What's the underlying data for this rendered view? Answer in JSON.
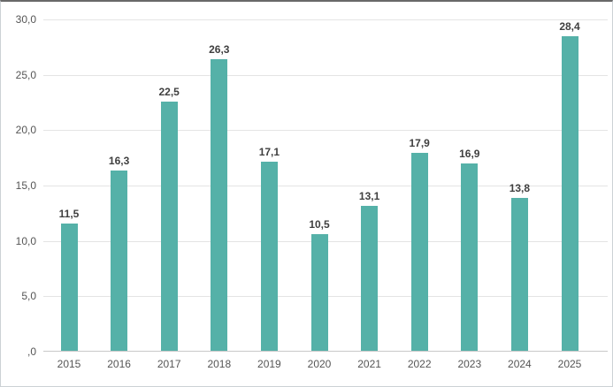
{
  "chart_data": {
    "type": "bar",
    "title": "",
    "xlabel": "",
    "ylabel": "",
    "categories": [
      "2015",
      "2016",
      "2017",
      "2018",
      "2019",
      "2020",
      "2021",
      "2022",
      "2023",
      "2024",
      "2025"
    ],
    "values": [
      11.5,
      16.3,
      22.5,
      26.3,
      17.1,
      10.5,
      13.1,
      17.9,
      16.9,
      13.8,
      28.4
    ],
    "value_labels": [
      "11,5",
      "16,3",
      "22,5",
      "26,3",
      "17,1",
      "10,5",
      "13,1",
      "17,9",
      "16,9",
      "13,8",
      "28,4"
    ],
    "ylim": [
      0,
      30
    ],
    "y_ticks": [
      {
        "value": 0,
        "label": ",0"
      },
      {
        "value": 5,
        "label": "5,0"
      },
      {
        "value": 10,
        "label": "10,0"
      },
      {
        "value": 15,
        "label": "15,0"
      },
      {
        "value": 20,
        "label": "20,0"
      },
      {
        "value": 25,
        "label": "25,0"
      },
      {
        "value": 30,
        "label": "30,0"
      }
    ],
    "grid": true,
    "legend": false
  },
  "colors": {
    "bar": "#55b1a8",
    "gridline": "#e4e4e4",
    "axis_line": "#c9c9c9",
    "value_label_text": "#3f3f3f",
    "tick_text": "#555555",
    "background": "#ffffff",
    "frame_border": "#ccd1d5",
    "frame_top_border": "#696969"
  }
}
